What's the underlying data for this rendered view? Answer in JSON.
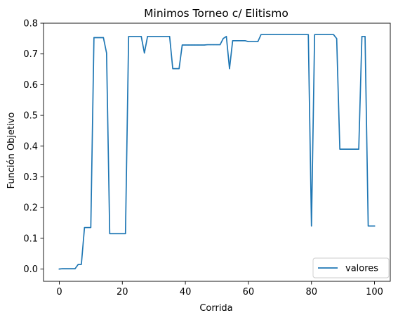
{
  "chart_data": {
    "type": "line",
    "title": "Minimos Torneo c/ Elitismo",
    "xlabel": "Corrida",
    "ylabel": "Función Objetivo",
    "xlim": [
      -5,
      105
    ],
    "ylim": [
      -0.04,
      0.8
    ],
    "xticks": [
      0,
      20,
      40,
      60,
      80,
      100
    ],
    "yticks": [
      0.0,
      0.1,
      0.2,
      0.3,
      0.4,
      0.5,
      0.6,
      0.7,
      0.8
    ],
    "xtick_labels": [
      "0",
      "20",
      "40",
      "60",
      "80",
      "100"
    ],
    "ytick_labels": [
      "0.0",
      "0.1",
      "0.2",
      "0.3",
      "0.4",
      "0.5",
      "0.6",
      "0.7",
      "0.8"
    ],
    "grid": false,
    "legend_position": "lower-right",
    "series": [
      {
        "name": "valores",
        "color": "#1f77b4",
        "x": [
          0,
          1,
          2,
          3,
          4,
          5,
          6,
          7,
          8,
          9,
          10,
          11,
          12,
          13,
          14,
          15,
          16,
          17,
          18,
          19,
          20,
          21,
          22,
          23,
          24,
          25,
          26,
          27,
          28,
          29,
          30,
          31,
          32,
          33,
          34,
          35,
          36,
          37,
          38,
          39,
          40,
          41,
          42,
          43,
          44,
          45,
          46,
          47,
          48,
          49,
          50,
          51,
          52,
          53,
          54,
          55,
          56,
          57,
          58,
          59,
          60,
          61,
          62,
          63,
          64,
          65,
          66,
          67,
          68,
          69,
          70,
          71,
          72,
          73,
          74,
          75,
          76,
          77,
          78,
          79,
          80,
          81,
          82,
          83,
          84,
          85,
          86,
          87,
          88,
          89,
          90,
          91,
          92,
          93,
          94,
          95,
          96,
          97,
          98,
          99,
          100
        ],
        "values": [
          0.0,
          0.001,
          0.001,
          0.001,
          0.001,
          0.001,
          0.015,
          0.015,
          0.135,
          0.135,
          0.135,
          0.753,
          0.753,
          0.753,
          0.753,
          0.703,
          0.115,
          0.115,
          0.115,
          0.115,
          0.115,
          0.115,
          0.757,
          0.757,
          0.757,
          0.757,
          0.757,
          0.703,
          0.757,
          0.757,
          0.757,
          0.757,
          0.757,
          0.757,
          0.757,
          0.757,
          0.652,
          0.652,
          0.652,
          0.729,
          0.729,
          0.729,
          0.729,
          0.729,
          0.729,
          0.729,
          0.729,
          0.73,
          0.73,
          0.73,
          0.73,
          0.73,
          0.75,
          0.757,
          0.652,
          0.743,
          0.743,
          0.743,
          0.743,
          0.743,
          0.74,
          0.74,
          0.74,
          0.74,
          0.763,
          0.763,
          0.763,
          0.763,
          0.763,
          0.763,
          0.763,
          0.763,
          0.763,
          0.763,
          0.763,
          0.763,
          0.763,
          0.763,
          0.763,
          0.763,
          0.14,
          0.763,
          0.763,
          0.763,
          0.763,
          0.763,
          0.763,
          0.763,
          0.75,
          0.39,
          0.39,
          0.39,
          0.39,
          0.39,
          0.39,
          0.39,
          0.757,
          0.757,
          0.14,
          0.14,
          0.14
        ]
      }
    ]
  }
}
